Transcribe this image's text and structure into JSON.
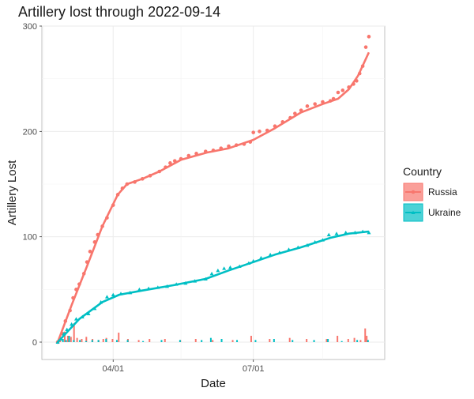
{
  "chart_data": {
    "type": "line",
    "title": "Artillery lost through 2022-09-14",
    "xlabel": "Date",
    "ylabel": "Artillery Lost",
    "xlim": [
      "2022-02-24",
      "2022-09-14"
    ],
    "ylim": [
      0,
      300
    ],
    "x_ticks": [
      "04/01",
      "07/01"
    ],
    "x_tick_dates": [
      "2022-04-01",
      "2022-07-01"
    ],
    "y_ticks": [
      0,
      100,
      200,
      300
    ],
    "grid": true,
    "legend": {
      "title": "Country",
      "position": "right"
    },
    "series": [
      {
        "name": "Russia",
        "color": "#F8766D",
        "cumulative": [
          [
            "2022-02-24",
            0
          ],
          [
            "2022-02-27",
            8
          ],
          [
            "2022-03-01",
            20
          ],
          [
            "2022-03-04",
            30
          ],
          [
            "2022-03-06",
            42
          ],
          [
            "2022-03-08",
            50
          ],
          [
            "2022-03-10",
            55
          ],
          [
            "2022-03-13",
            65
          ],
          [
            "2022-03-15",
            76
          ],
          [
            "2022-03-17",
            86
          ],
          [
            "2022-03-20",
            95
          ],
          [
            "2022-03-22",
            102
          ],
          [
            "2022-03-25",
            110
          ],
          [
            "2022-03-28",
            118
          ],
          [
            "2022-04-01",
            130
          ],
          [
            "2022-04-04",
            140
          ],
          [
            "2022-04-07",
            146
          ],
          [
            "2022-04-10",
            150
          ],
          [
            "2022-04-15",
            152
          ],
          [
            "2022-04-20",
            155
          ],
          [
            "2022-04-25",
            158
          ],
          [
            "2022-05-01",
            162
          ],
          [
            "2022-05-05",
            166
          ],
          [
            "2022-05-08",
            170
          ],
          [
            "2022-05-11",
            172
          ],
          [
            "2022-05-15",
            174
          ],
          [
            "2022-05-20",
            177
          ],
          [
            "2022-05-25",
            179
          ],
          [
            "2022-05-31",
            181
          ],
          [
            "2022-06-05",
            182
          ],
          [
            "2022-06-10",
            184
          ],
          [
            "2022-06-15",
            186
          ],
          [
            "2022-06-20",
            187
          ],
          [
            "2022-06-25",
            188
          ],
          [
            "2022-06-29",
            190
          ],
          [
            "2022-07-01",
            199
          ],
          [
            "2022-07-05",
            200
          ],
          [
            "2022-07-10",
            201
          ],
          [
            "2022-07-15",
            205
          ],
          [
            "2022-07-20",
            209
          ],
          [
            "2022-07-25",
            213
          ],
          [
            "2022-07-28",
            217
          ],
          [
            "2022-08-01",
            220
          ],
          [
            "2022-08-05",
            224
          ],
          [
            "2022-08-10",
            226
          ],
          [
            "2022-08-15",
            228
          ],
          [
            "2022-08-20",
            229
          ],
          [
            "2022-08-22",
            231
          ],
          [
            "2022-08-25",
            237
          ],
          [
            "2022-08-28",
            239
          ],
          [
            "2022-09-01",
            242
          ],
          [
            "2022-09-04",
            245
          ],
          [
            "2022-09-06",
            248
          ],
          [
            "2022-09-08",
            255
          ],
          [
            "2022-09-10",
            262
          ],
          [
            "2022-09-12",
            280
          ],
          [
            "2022-09-14",
            290
          ]
        ],
        "trend": [
          [
            "2022-02-24",
            0
          ],
          [
            "2022-03-05",
            35
          ],
          [
            "2022-03-15",
            72
          ],
          [
            "2022-03-25",
            110
          ],
          [
            "2022-04-04",
            140
          ],
          [
            "2022-04-10",
            150
          ],
          [
            "2022-04-20",
            155
          ],
          [
            "2022-05-01",
            162
          ],
          [
            "2022-05-15",
            173
          ],
          [
            "2022-06-01",
            180
          ],
          [
            "2022-06-15",
            184
          ],
          [
            "2022-07-01",
            192
          ],
          [
            "2022-07-15",
            203
          ],
          [
            "2022-08-01",
            218
          ],
          [
            "2022-08-15",
            226
          ],
          [
            "2022-08-25",
            231
          ],
          [
            "2022-09-01",
            240
          ],
          [
            "2022-09-07",
            253
          ],
          [
            "2022-09-14",
            275
          ]
        ],
        "daily": [
          [
            "2022-02-26",
            4
          ],
          [
            "2022-03-01",
            10
          ],
          [
            "2022-03-03",
            6
          ],
          [
            "2022-03-05",
            5
          ],
          [
            "2022-03-07",
            18
          ],
          [
            "2022-03-09",
            4
          ],
          [
            "2022-03-12",
            3
          ],
          [
            "2022-03-15",
            5
          ],
          [
            "2022-03-19",
            3
          ],
          [
            "2022-03-23",
            2
          ],
          [
            "2022-03-26",
            3
          ],
          [
            "2022-03-28",
            4
          ],
          [
            "2022-04-01",
            3
          ],
          [
            "2022-04-05",
            9
          ],
          [
            "2022-04-11",
            3
          ],
          [
            "2022-04-18",
            2
          ],
          [
            "2022-04-25",
            3
          ],
          [
            "2022-05-05",
            3
          ],
          [
            "2022-05-15",
            2
          ],
          [
            "2022-05-25",
            3
          ],
          [
            "2022-06-05",
            2
          ],
          [
            "2022-06-18",
            2
          ],
          [
            "2022-06-30",
            6
          ],
          [
            "2022-07-12",
            3
          ],
          [
            "2022-07-25",
            4
          ],
          [
            "2022-08-05",
            3
          ],
          [
            "2022-08-18",
            3
          ],
          [
            "2022-08-25",
            6
          ],
          [
            "2022-09-01",
            3
          ],
          [
            "2022-09-05",
            4
          ],
          [
            "2022-09-09",
            2
          ],
          [
            "2022-09-12",
            13
          ],
          [
            "2022-09-13",
            6
          ]
        ]
      },
      {
        "name": "Ukraine",
        "color": "#00BFC4",
        "cumulative": [
          [
            "2022-02-24",
            0
          ],
          [
            "2022-02-26",
            3
          ],
          [
            "2022-02-28",
            8
          ],
          [
            "2022-03-02",
            12
          ],
          [
            "2022-03-05",
            17
          ],
          [
            "2022-03-08",
            22
          ],
          [
            "2022-03-12",
            24
          ],
          [
            "2022-03-16",
            27
          ],
          [
            "2022-03-20",
            32
          ],
          [
            "2022-03-24",
            38
          ],
          [
            "2022-03-28",
            43
          ],
          [
            "2022-04-01",
            45
          ],
          [
            "2022-04-06",
            46
          ],
          [
            "2022-04-12",
            47
          ],
          [
            "2022-04-18",
            50
          ],
          [
            "2022-04-24",
            51
          ],
          [
            "2022-04-30",
            52
          ],
          [
            "2022-05-06",
            53
          ],
          [
            "2022-05-12",
            55
          ],
          [
            "2022-05-18",
            56
          ],
          [
            "2022-05-24",
            58
          ],
          [
            "2022-05-31",
            60
          ],
          [
            "2022-06-04",
            65
          ],
          [
            "2022-06-08",
            68
          ],
          [
            "2022-06-12",
            70
          ],
          [
            "2022-06-16",
            71
          ],
          [
            "2022-06-22",
            72
          ],
          [
            "2022-06-28",
            75
          ],
          [
            "2022-07-01",
            77
          ],
          [
            "2022-07-06",
            80
          ],
          [
            "2022-07-12",
            83
          ],
          [
            "2022-07-18",
            85
          ],
          [
            "2022-07-24",
            88
          ],
          [
            "2022-07-30",
            90
          ],
          [
            "2022-08-05",
            92
          ],
          [
            "2022-08-10",
            95
          ],
          [
            "2022-08-15",
            97
          ],
          [
            "2022-08-19",
            102
          ],
          [
            "2022-08-24",
            103
          ],
          [
            "2022-08-30",
            104
          ],
          [
            "2022-09-05",
            104
          ],
          [
            "2022-09-10",
            105
          ],
          [
            "2022-09-14",
            104
          ]
        ],
        "trend": [
          [
            "2022-02-24",
            0
          ],
          [
            "2022-03-10",
            22
          ],
          [
            "2022-03-25",
            38
          ],
          [
            "2022-04-05",
            45
          ],
          [
            "2022-04-20",
            49
          ],
          [
            "2022-05-10",
            54
          ],
          [
            "2022-05-31",
            60
          ],
          [
            "2022-06-15",
            68
          ],
          [
            "2022-07-01",
            76
          ],
          [
            "2022-07-15",
            83
          ],
          [
            "2022-08-01",
            90
          ],
          [
            "2022-08-20",
            99
          ],
          [
            "2022-09-01",
            103
          ],
          [
            "2022-09-14",
            105
          ]
        ],
        "daily": [
          [
            "2022-02-27",
            3
          ],
          [
            "2022-03-01",
            2
          ],
          [
            "2022-03-03",
            6
          ],
          [
            "2022-03-06",
            2
          ],
          [
            "2022-03-10",
            2
          ],
          [
            "2022-03-14",
            1
          ],
          [
            "2022-03-18",
            2
          ],
          [
            "2022-03-22",
            2
          ],
          [
            "2022-03-27",
            3
          ],
          [
            "2022-04-03",
            2
          ],
          [
            "2022-04-10",
            2
          ],
          [
            "2022-04-20",
            1
          ],
          [
            "2022-05-02",
            2
          ],
          [
            "2022-05-14",
            2
          ],
          [
            "2022-05-28",
            2
          ],
          [
            "2022-06-03",
            4
          ],
          [
            "2022-06-10",
            3
          ],
          [
            "2022-06-20",
            2
          ],
          [
            "2022-07-02",
            2
          ],
          [
            "2022-07-14",
            3
          ],
          [
            "2022-07-26",
            2
          ],
          [
            "2022-08-09",
            2
          ],
          [
            "2022-08-18",
            3
          ],
          [
            "2022-08-27",
            1
          ],
          [
            "2022-09-06",
            2
          ],
          [
            "2022-09-13",
            2
          ]
        ]
      }
    ]
  }
}
